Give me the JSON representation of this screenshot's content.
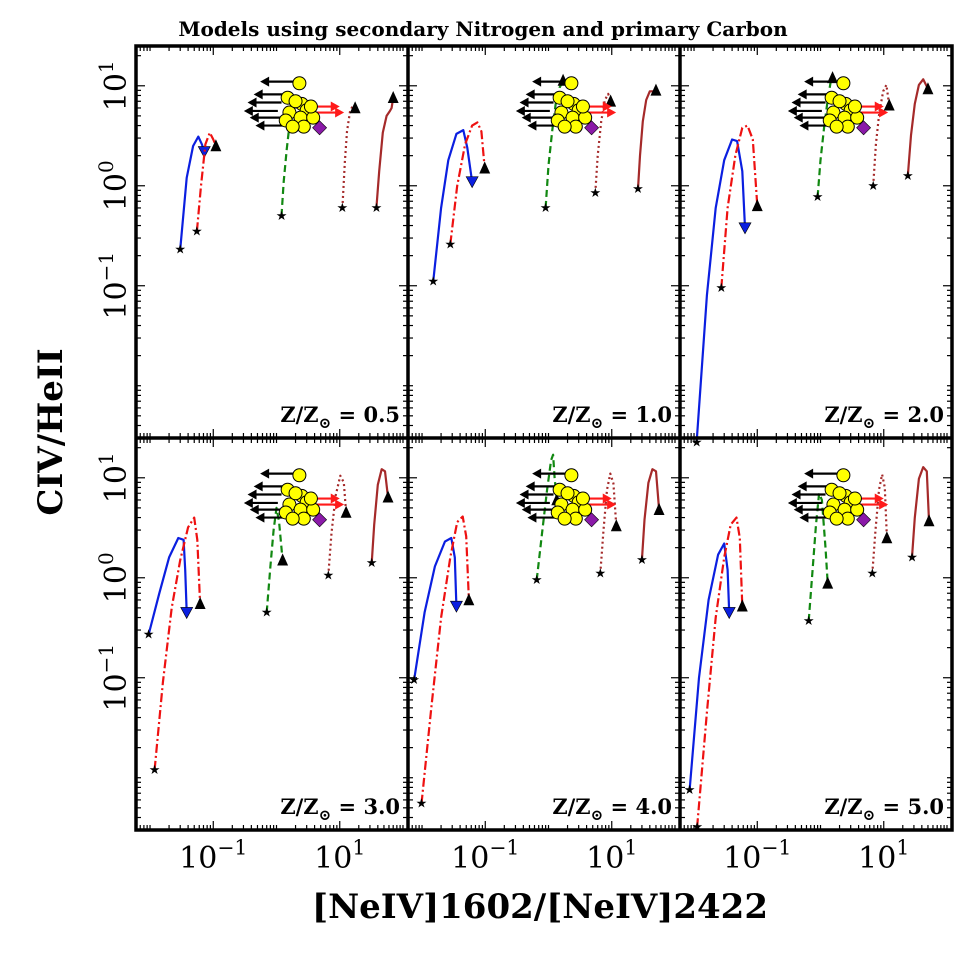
{
  "figure": {
    "title": "Models using secondary Nitrogen and primary Carbon",
    "xlabel": "[NeIV]1602/[NeIV]2422",
    "ylabel": "CIV/HeII"
  },
  "chart_data": {
    "type": "line",
    "title": "Models using secondary Nitrogen and primary Carbon",
    "xlabel": "[NeIV]1602/[NeIV]2422",
    "ylabel": "CIV/HeII",
    "xscale": "log",
    "yscale": "log",
    "xlim": [
      0.006,
      120
    ],
    "ylim": [
      0.003,
      25
    ],
    "x_ticks": [
      0.1,
      10
    ],
    "x_tick_labels": [
      "10^-1",
      "10^1"
    ],
    "y_ticks": [
      0.1,
      1,
      10
    ],
    "y_tick_labels": [
      "10^-1",
      "10^0",
      "10^1"
    ],
    "layout": "2x3 grid, shared axes",
    "series_styles": [
      {
        "color": "#0b1fe0",
        "dash": "solid",
        "end_marker": "triangle-down"
      },
      {
        "color": "#ee1111",
        "dash": "dash-dot",
        "end_marker": "triangle-up"
      },
      {
        "color": "#118811",
        "dash": "dashed",
        "end_marker": "triangle-up"
      },
      {
        "color": "#a52a2a",
        "dash": "dotted",
        "end_marker": "triangle-up"
      },
      {
        "color": "#a52a2a",
        "dash": "solid",
        "end_marker": "triangle-up"
      }
    ],
    "panels": [
      {
        "label": "0.5",
        "series": [
          {
            "points": [
              [
                0.03,
                0.23
              ],
              [
                0.038,
                1.2
              ],
              [
                0.048,
                2.5
              ],
              [
                0.058,
                3.1
              ],
              [
                0.066,
                2.6
              ],
              [
                0.072,
                2.2
              ]
            ]
          },
          {
            "points": [
              [
                0.055,
                0.35
              ],
              [
                0.064,
                1.0
              ],
              [
                0.075,
                2.6
              ],
              [
                0.088,
                3.4
              ],
              [
                0.1,
                2.9
              ],
              [
                0.11,
                2.5
              ]
            ]
          },
          {
            "points": [
              [
                1.2,
                0.5
              ],
              [
                1.3,
                1.1
              ],
              [
                1.45,
                2.3
              ],
              [
                1.6,
                4.0
              ],
              [
                1.8,
                5.6
              ],
              [
                2.0,
                6.7
              ]
            ]
          },
          {
            "points": [
              [
                11,
                0.6
              ],
              [
                12,
                1.7
              ],
              [
                13,
                3.5
              ],
              [
                14.5,
                5.5
              ],
              [
                16,
                6.3
              ],
              [
                17.5,
                6.0
              ]
            ]
          },
          {
            "points": [
              [
                38,
                0.6
              ],
              [
                42,
                1.4
              ],
              [
                48,
                3.4
              ],
              [
                55,
                5.0
              ],
              [
                62,
                5.6
              ],
              [
                66,
                6.0
              ],
              [
                70,
                7.6
              ]
            ]
          }
        ]
      },
      {
        "label": "1.0",
        "series": [
          {
            "points": [
              [
                0.015,
                0.11
              ],
              [
                0.02,
                0.6
              ],
              [
                0.026,
                1.8
              ],
              [
                0.035,
                3.3
              ],
              [
                0.045,
                3.6
              ],
              [
                0.052,
                2.4
              ],
              [
                0.062,
                1.1
              ]
            ]
          },
          {
            "points": [
              [
                0.028,
                0.26
              ],
              [
                0.036,
                1.0
              ],
              [
                0.048,
                2.6
              ],
              [
                0.062,
                4.0
              ],
              [
                0.075,
                4.3
              ],
              [
                0.087,
                3.5
              ],
              [
                0.098,
                1.5
              ]
            ]
          },
          {
            "points": [
              [
                0.9,
                0.6
              ],
              [
                1.0,
                1.6
              ],
              [
                1.15,
                3.6
              ],
              [
                1.3,
                6.6
              ],
              [
                1.5,
                9.6
              ],
              [
                1.7,
                11.3
              ]
            ]
          },
          {
            "points": [
              [
                5.5,
                0.85
              ],
              [
                6,
                2.0
              ],
              [
                6.8,
                4.4
              ],
              [
                7.8,
                7.2
              ],
              [
                8.8,
                8.3
              ],
              [
                9.6,
                7.0
              ]
            ]
          },
          {
            "points": [
              [
                26,
                0.93
              ],
              [
                28,
                2.0
              ],
              [
                31,
                4.4
              ],
              [
                35,
                7.2
              ],
              [
                40,
                8.8
              ],
              [
                46,
                8.8
              ],
              [
                50,
                9.0
              ]
            ]
          }
        ]
      },
      {
        "label": "2.0",
        "series": [
          {
            "points": [
              [
                0.011,
                0.0027
              ],
              [
                0.016,
                0.08
              ],
              [
                0.022,
                0.6
              ],
              [
                0.03,
                1.8
              ],
              [
                0.04,
                2.9
              ],
              [
                0.048,
                2.8
              ],
              [
                0.058,
                1.4
              ],
              [
                0.064,
                0.38
              ]
            ]
          },
          {
            "points": [
              [
                0.027,
                0.095
              ],
              [
                0.034,
                0.6
              ],
              [
                0.045,
                2.0
              ],
              [
                0.058,
                3.8
              ],
              [
                0.07,
                4.0
              ],
              [
                0.085,
                2.9
              ],
              [
                0.1,
                0.63
              ]
            ]
          },
          {
            "points": [
              [
                0.9,
                0.77
              ],
              [
                1.0,
                1.8
              ],
              [
                1.15,
                4.0
              ],
              [
                1.3,
                7.2
              ],
              [
                1.45,
                11.0
              ],
              [
                1.55,
                12.0
              ]
            ]
          },
          {
            "points": [
              [
                6.8,
                1.0
              ],
              [
                7.5,
                2.6
              ],
              [
                8.5,
                5.4
              ],
              [
                9.8,
                8.8
              ],
              [
                11,
                10.2
              ],
              [
                12.2,
                6.4
              ]
            ]
          },
          {
            "points": [
              [
                24,
                1.25
              ],
              [
                27,
                3.2
              ],
              [
                31,
                6.6
              ],
              [
                36,
                10.2
              ],
              [
                42,
                11.6
              ],
              [
                50,
                9.3
              ]
            ]
          }
        ]
      },
      {
        "label": "3.0",
        "series": [
          {
            "points": [
              [
                0.0095,
                0.27
              ],
              [
                0.014,
                0.7
              ],
              [
                0.02,
                1.6
              ],
              [
                0.028,
                2.5
              ],
              [
                0.034,
                2.4
              ],
              [
                0.036,
                1.2
              ],
              [
                0.038,
                0.45
              ]
            ]
          },
          {
            "points": [
              [
                0.0118,
                0.012
              ],
              [
                0.016,
                0.09
              ],
              [
                0.022,
                0.5
              ],
              [
                0.03,
                1.5
              ],
              [
                0.04,
                3.2
              ],
              [
                0.05,
                4.0
              ],
              [
                0.056,
                2.4
              ],
              [
                0.062,
                0.55
              ]
            ]
          },
          {
            "points": [
              [
                0.7,
                0.45
              ],
              [
                0.8,
                1.3
              ],
              [
                0.9,
                3.0
              ],
              [
                1.0,
                5.0
              ],
              [
                1.1,
                3.6
              ],
              [
                1.25,
                1.5
              ]
            ]
          },
          {
            "points": [
              [
                6.6,
                1.05
              ],
              [
                7.4,
                2.8
              ],
              [
                8.6,
                6.6
              ],
              [
                10.2,
                10.5
              ],
              [
                11.6,
                9.0
              ],
              [
                12.6,
                4.5
              ]
            ]
          },
          {
            "points": [
              [
                32,
                1.4
              ],
              [
                35,
                3.4
              ],
              [
                40,
                8.5
              ],
              [
                46,
                12.2
              ],
              [
                52,
                11.6
              ],
              [
                58,
                6.4
              ]
            ]
          }
        ]
      },
      {
        "label": "4.0",
        "series": [
          {
            "points": [
              [
                0.0075,
                0.095
              ],
              [
                0.011,
                0.45
              ],
              [
                0.016,
                1.3
              ],
              [
                0.023,
                2.3
              ],
              [
                0.029,
                2.5
              ],
              [
                0.033,
                1.6
              ],
              [
                0.035,
                0.52
              ]
            ]
          },
          {
            "points": [
              [
                0.0098,
                0.0055
              ],
              [
                0.014,
                0.05
              ],
              [
                0.02,
                0.4
              ],
              [
                0.028,
                1.6
              ],
              [
                0.036,
                3.6
              ],
              [
                0.044,
                4.1
              ],
              [
                0.05,
                2.6
              ],
              [
                0.055,
                0.6
              ]
            ]
          },
          {
            "points": [
              [
                0.65,
                0.95
              ],
              [
                0.8,
                3.0
              ],
              [
                0.95,
                7.6
              ],
              [
                1.1,
                15.0
              ],
              [
                1.18,
                17.0
              ],
              [
                1.25,
                10.0
              ],
              [
                1.35,
                6.0
              ]
            ]
          },
          {
            "points": [
              [
                6.6,
                1.1
              ],
              [
                7.4,
                3.0
              ],
              [
                8.4,
                7.6
              ],
              [
                9.5,
                11.0
              ],
              [
                10.6,
                8.8
              ],
              [
                11.8,
                3.3
              ]
            ]
          },
          {
            "points": [
              [
                30,
                1.5
              ],
              [
                33,
                3.8
              ],
              [
                38,
                8.9
              ],
              [
                44,
                12.2
              ],
              [
                50,
                11.6
              ],
              [
                56,
                4.8
              ]
            ]
          }
        ]
      },
      {
        "label": "5.0",
        "series": [
          {
            "points": [
              [
                0.0085,
                0.0075
              ],
              [
                0.012,
                0.1
              ],
              [
                0.017,
                0.6
              ],
              [
                0.024,
                1.7
              ],
              [
                0.03,
                2.2
              ],
              [
                0.034,
                1.2
              ],
              [
                0.036,
                0.45
              ]
            ]
          },
          {
            "points": [
              [
                0.0112,
                0.0032
              ],
              [
                0.016,
                0.045
              ],
              [
                0.022,
                0.4
              ],
              [
                0.03,
                1.6
              ],
              [
                0.038,
                3.4
              ],
              [
                0.047,
                4.0
              ],
              [
                0.053,
                2.5
              ],
              [
                0.058,
                0.52
              ]
            ]
          },
          {
            "points": [
              [
                0.65,
                0.37
              ],
              [
                0.75,
                1.2
              ],
              [
                0.85,
                3.4
              ],
              [
                0.95,
                7.0
              ],
              [
                1.05,
                6.0
              ],
              [
                1.2,
                2.0
              ],
              [
                1.3,
                0.88
              ]
            ]
          },
          {
            "points": [
              [
                6.6,
                1.1
              ],
              [
                7.4,
                3.0
              ],
              [
                8.4,
                7.6
              ],
              [
                9.4,
                10.8
              ],
              [
                10.4,
                8.0
              ],
              [
                11.2,
                2.5
              ]
            ]
          },
          {
            "points": [
              [
                28,
                1.6
              ],
              [
                31,
                4.0
              ],
              [
                36,
                9.8
              ],
              [
                42,
                12.8
              ],
              [
                48,
                11.6
              ],
              [
                52,
                3.7
              ]
            ]
          }
        ]
      }
    ],
    "observations": {
      "circles": [
        [
          2.3,
          10.6
        ],
        [
          1.5,
          7.6
        ],
        [
          2.5,
          6.6
        ],
        [
          1.6,
          5.4
        ],
        [
          3.0,
          5.7
        ],
        [
          1.4,
          4.5
        ],
        [
          2.4,
          4.8
        ],
        [
          3.8,
          4.8
        ],
        [
          2.0,
          7.0
        ],
        [
          2.7,
          3.9
        ],
        [
          3.5,
          6.2
        ],
        [
          1.8,
          3.9
        ]
      ],
      "left_arrows": [
        [
          1.9,
          11.0
        ],
        [
          1.5,
          8.2
        ],
        [
          1.2,
          6.8
        ],
        [
          1.05,
          5.6
        ],
        [
          1.3,
          4.8
        ],
        [
          1.6,
          4.0
        ]
      ],
      "right_arrows": [
        [
          2.9,
          6.2
        ],
        [
          3.4,
          5.4
        ]
      ],
      "diamond": [
        4.8,
        3.8
      ]
    }
  }
}
